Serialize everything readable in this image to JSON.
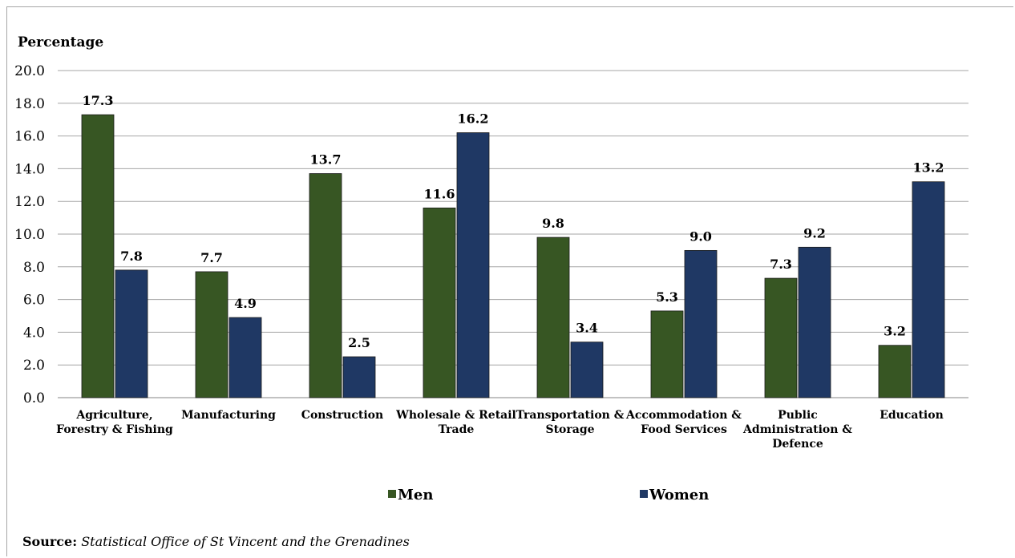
{
  "chart_data": {
    "type": "bar",
    "ylabel": "Percentage",
    "ylim": [
      0,
      20
    ],
    "yticks": [
      "0.0",
      "2.0",
      "4.0",
      "6.0",
      "8.0",
      "10.0",
      "12.0",
      "14.0",
      "16.0",
      "18.0",
      "20.0"
    ],
    "grid": true,
    "legend_position": "bottom",
    "categories": [
      [
        "Agriculture,",
        "Forestry & Fishing"
      ],
      [
        "Manufacturing"
      ],
      [
        "Construction"
      ],
      [
        "Wholesale & Retail",
        "Trade"
      ],
      [
        "Transportation &",
        "Storage"
      ],
      [
        "Accommodation &",
        "Food Services"
      ],
      [
        "Public",
        "Administration &",
        "Defence"
      ],
      [
        "Education"
      ]
    ],
    "series": [
      {
        "name": "Men",
        "color": "#375623",
        "values": [
          17.3,
          7.7,
          13.7,
          11.6,
          9.8,
          5.3,
          7.3,
          3.2
        ]
      },
      {
        "name": "Women",
        "color": "#1f3864",
        "values": [
          7.8,
          4.9,
          2.5,
          16.2,
          3.4,
          9.0,
          9.2,
          13.2
        ]
      }
    ]
  },
  "source": {
    "label": "Source:",
    "text": "Statistical Office of St Vincent and the Grenadines"
  }
}
